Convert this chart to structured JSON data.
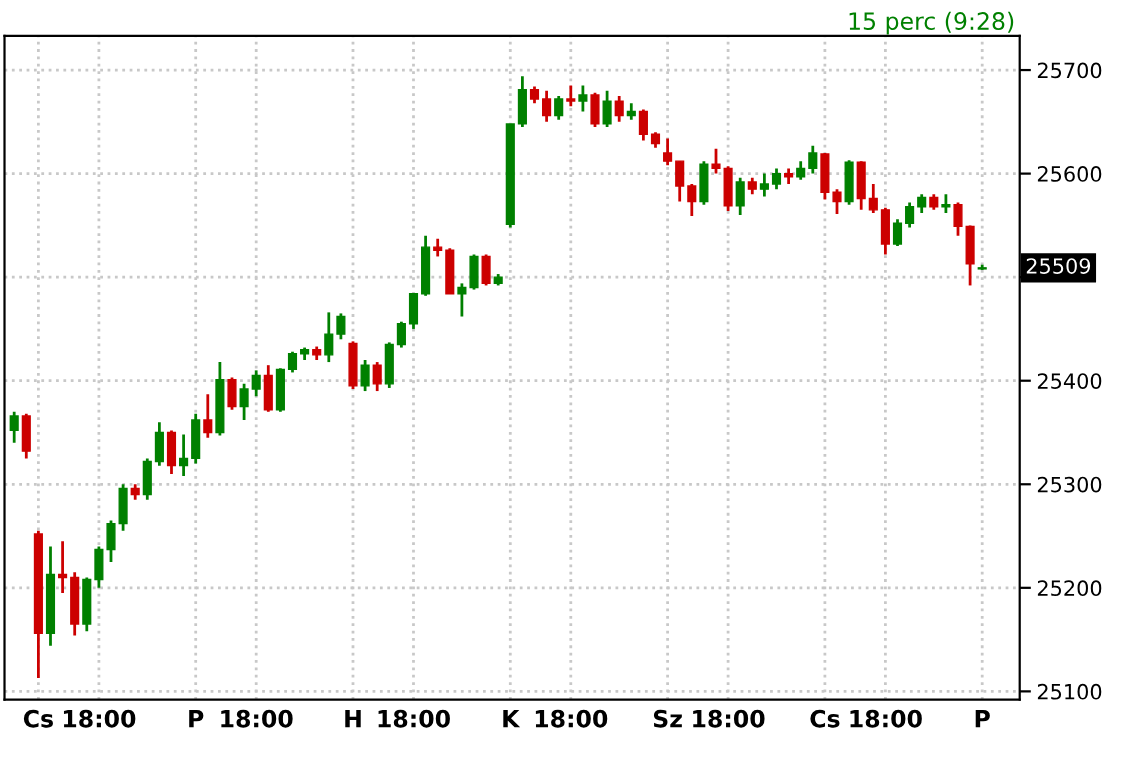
{
  "chart_data": {
    "type": "candlestick",
    "subtitle": "15 perc (9:28)",
    "categories": [
      null,
      null,
      "Cs",
      null,
      null,
      null,
      null,
      "18:00",
      null,
      null,
      null,
      null,
      null,
      null,
      null,
      "P",
      null,
      null,
      null,
      null,
      "18:00",
      null,
      null,
      null,
      null,
      null,
      null,
      null,
      "H",
      null,
      null,
      null,
      null,
      "18:00",
      null,
      null,
      null,
      null,
      null,
      null,
      null,
      "K",
      null,
      null,
      null,
      null,
      "18:00",
      null,
      null,
      null,
      null,
      null,
      null,
      null,
      "Sz",
      null,
      null,
      null,
      null,
      "18:00",
      null,
      null,
      null,
      null,
      null,
      null,
      null,
      "Cs",
      null,
      null,
      null,
      null,
      "18:00",
      null,
      null,
      null,
      null,
      null,
      null,
      null,
      "P"
    ],
    "ohlc": [
      [
        25352,
        25370,
        25340,
        25366
      ],
      [
        25366,
        25368,
        25325,
        25332
      ],
      [
        25252,
        25255,
        25113,
        25156
      ],
      [
        25156,
        25240,
        25144,
        25213
      ],
      [
        25213,
        25245,
        25195,
        25210
      ],
      [
        25210,
        25215,
        25154,
        25165
      ],
      [
        25165,
        25210,
        25158,
        25208
      ],
      [
        25208,
        25240,
        25200,
        25237
      ],
      [
        25237,
        25265,
        25225,
        25262
      ],
      [
        25262,
        25300,
        25255,
        25296
      ],
      [
        25296,
        25300,
        25285,
        25290
      ],
      [
        25290,
        25325,
        25285,
        25322
      ],
      [
        25322,
        25360,
        25318,
        25350
      ],
      [
        25350,
        25352,
        25310,
        25318
      ],
      [
        25318,
        25348,
        25308,
        25325
      ],
      [
        25325,
        25368,
        25320,
        25362
      ],
      [
        25362,
        25387,
        25345,
        25350
      ],
      [
        25350,
        25418,
        25347,
        25401
      ],
      [
        25401,
        25403,
        25372,
        25375
      ],
      [
        25375,
        25397,
        25362,
        25392
      ],
      [
        25392,
        25410,
        25385,
        25405
      ],
      [
        25405,
        25415,
        25370,
        25372
      ],
      [
        25372,
        25412,
        25370,
        25411
      ],
      [
        25411,
        25428,
        25408,
        25426
      ],
      [
        25426,
        25432,
        25420,
        25430
      ],
      [
        25430,
        25433,
        25420,
        25425
      ],
      [
        25425,
        25466,
        25418,
        25445
      ],
      [
        25445,
        25465,
        25440,
        25462
      ],
      [
        25436,
        25438,
        25392,
        25395
      ],
      [
        25395,
        25420,
        25390,
        25415
      ],
      [
        25415,
        25418,
        25390,
        25397
      ],
      [
        25397,
        25437,
        25393,
        25435
      ],
      [
        25435,
        25457,
        25432,
        25455
      ],
      [
        25455,
        25484,
        25450,
        25484
      ],
      [
        25484,
        25540,
        25482,
        25529
      ],
      [
        25529,
        25537,
        25520,
        25526
      ],
      [
        25526,
        25528,
        25484,
        25484
      ],
      [
        25484,
        25494,
        25462,
        25490
      ],
      [
        25490,
        25522,
        25488,
        25520
      ],
      [
        25520,
        25522,
        25492,
        25494
      ],
      [
        25494,
        25503,
        25492,
        25500
      ],
      [
        25551,
        25648,
        25548,
        25648
      ],
      [
        25648,
        25694,
        25645,
        25681
      ],
      [
        25681,
        25684,
        25668,
        25672
      ],
      [
        25672,
        25680,
        25650,
        25656
      ],
      [
        25656,
        25675,
        25652,
        25672
      ],
      [
        25672,
        25685,
        25665,
        25670
      ],
      [
        25670,
        25685,
        25660,
        25676
      ],
      [
        25676,
        25678,
        25645,
        25648
      ],
      [
        25648,
        25680,
        25645,
        25670
      ],
      [
        25670,
        25675,
        25650,
        25656
      ],
      [
        25656,
        25668,
        25652,
        25660
      ],
      [
        25660,
        25662,
        25632,
        25638
      ],
      [
        25638,
        25640,
        25625,
        25629
      ],
      [
        25620,
        25634,
        25608,
        25612
      ],
      [
        25612,
        25612,
        25573,
        25588
      ],
      [
        25588,
        25590,
        25559,
        25573
      ],
      [
        25573,
        25612,
        25570,
        25609
      ],
      [
        25609,
        25624,
        25600,
        25605
      ],
      [
        25605,
        25607,
        25564,
        25569
      ],
      [
        25569,
        25596,
        25560,
        25592
      ],
      [
        25592,
        25596,
        25580,
        25585
      ],
      [
        25585,
        25600,
        25578,
        25590
      ],
      [
        25590,
        25605,
        25585,
        25600
      ],
      [
        25600,
        25605,
        25590,
        25597
      ],
      [
        25597,
        25612,
        25594,
        25605
      ],
      [
        25605,
        25627,
        25600,
        25620
      ],
      [
        25619,
        25620,
        25575,
        25582
      ],
      [
        25582,
        25585,
        25561,
        25573
      ],
      [
        25573,
        25613,
        25570,
        25611
      ],
      [
        25611,
        25612,
        25565,
        25576
      ],
      [
        25576,
        25590,
        25562,
        25565
      ],
      [
        25565,
        25567,
        25522,
        25532
      ],
      [
        25532,
        25556,
        25530,
        25552
      ],
      [
        25552,
        25572,
        25548,
        25568
      ],
      [
        25568,
        25580,
        25562,
        25577
      ],
      [
        25577,
        25580,
        25565,
        25568
      ],
      [
        25568,
        25580,
        25562,
        25570
      ],
      [
        25570,
        25572,
        25540,
        25549
      ],
      [
        25549,
        25550,
        25492,
        25513
      ],
      [
        25508,
        25512,
        25507,
        25509
      ]
    ],
    "colors": [
      "#008000",
      "#cc0000",
      "#cc0000",
      "#008000",
      "#cc0000",
      "#cc0000",
      "#008000",
      "#008000",
      "#008000",
      "#008000",
      "#cc0000",
      "#008000",
      "#008000",
      "#cc0000",
      "#008000",
      "#008000",
      "#cc0000",
      "#008000",
      "#cc0000",
      "#008000",
      "#008000",
      "#cc0000",
      "#008000",
      "#008000",
      "#008000",
      "#cc0000",
      "#008000",
      "#008000",
      "#cc0000",
      "#008000",
      "#cc0000",
      "#008000",
      "#008000",
      "#008000",
      "#008000",
      "#cc0000",
      "#cc0000",
      "#008000",
      "#008000",
      "#cc0000",
      "#008000",
      "#008000",
      "#008000",
      "#cc0000",
      "#cc0000",
      "#008000",
      "#cc0000",
      "#008000",
      "#cc0000",
      "#008000",
      "#cc0000",
      "#008000",
      "#cc0000",
      "#cc0000",
      "#cc0000",
      "#cc0000",
      "#cc0000",
      "#008000",
      "#cc0000",
      "#cc0000",
      "#008000",
      "#cc0000",
      "#008000",
      "#008000",
      "#cc0000",
      "#008000",
      "#008000",
      "#cc0000",
      "#cc0000",
      "#008000",
      "#cc0000",
      "#cc0000",
      "#cc0000",
      "#008000",
      "#008000",
      "#008000",
      "#cc0000",
      "#008000",
      "#cc0000",
      "#cc0000",
      "#008000"
    ],
    "ylim": [
      25092,
      25733
    ],
    "yticks": [
      25100,
      25200,
      25300,
      25400,
      {
        "value": 25500,
        "label": null
      },
      25600,
      25700
    ],
    "annotations": [
      "25509"
    ],
    "grid": true
  }
}
